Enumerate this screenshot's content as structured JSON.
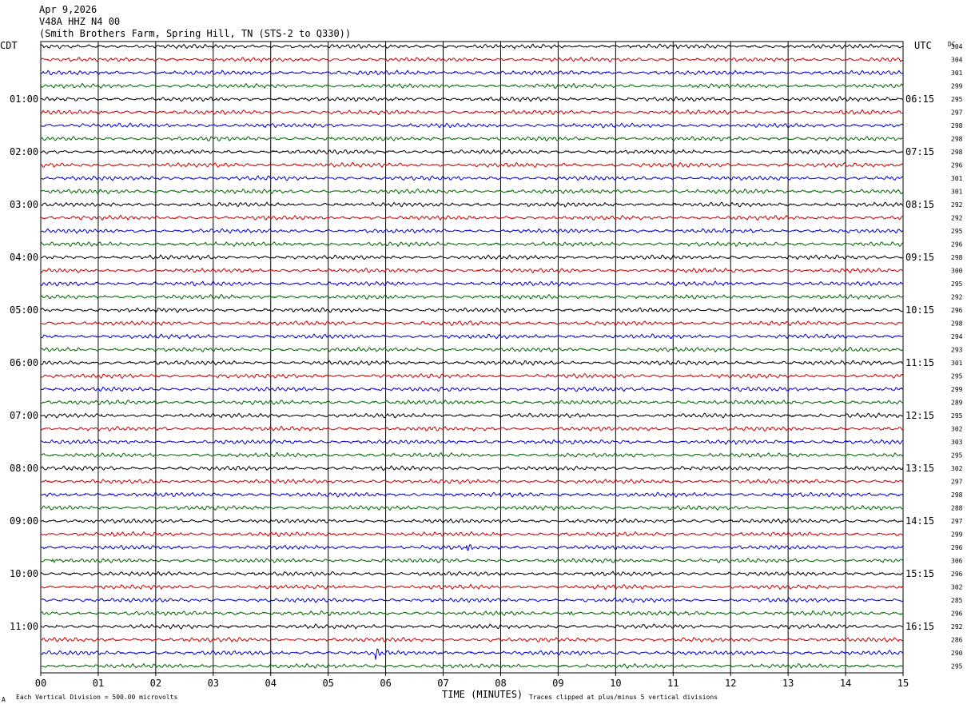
{
  "header": {
    "date": "Apr 9,2026",
    "station": "V48A HHZ N4 00",
    "location": "(Smith Brothers Farm, Spring Hill, TN (STS-2 to Q330))"
  },
  "left_zone_label": "CDT",
  "right_zone_label": "UTC",
  "dc_header": "DC",
  "footer": {
    "scale_note": "Each Vertical Division =  500.00 microvolts",
    "xlabel": "TIME (MINUTES)",
    "clip_note": "Traces clipped at plus/minus 5 vertical divisions",
    "corner_mark": "A"
  },
  "colors": {
    "trace_cycle": [
      "#000000",
      "#cc0000",
      "#0000cc",
      "#006600"
    ],
    "grid": "#000000"
  },
  "chart_data": {
    "type": "line",
    "description_kind": "helicorder",
    "x_ticks": [
      "00",
      "01",
      "02",
      "03",
      "04",
      "05",
      "06",
      "07",
      "08",
      "09",
      "10",
      "11",
      "12",
      "13",
      "14",
      "15"
    ],
    "xlim": [
      0,
      15
    ],
    "minutes_per_line": 15,
    "left_time_labels": [
      "01:00",
      "02:00",
      "03:00",
      "04:00",
      "05:00",
      "06:00",
      "07:00",
      "08:00",
      "09:00",
      "10:00",
      "11:00"
    ],
    "right_time_labels": [
      "06:15",
      "07:15",
      "08:15",
      "09:15",
      "10:15",
      "11:15",
      "12:15",
      "13:15",
      "14:15",
      "15:15",
      "16:15"
    ],
    "dc_offsets": [
      304,
      304,
      301,
      299,
      295,
      297,
      298,
      298,
      298,
      296,
      301,
      301,
      292,
      292,
      295,
      296,
      298,
      300,
      295,
      292,
      296,
      298,
      294,
      293,
      301,
      295,
      299,
      289,
      295,
      302,
      303,
      295,
      302,
      297,
      298,
      288,
      297,
      299,
      296,
      306,
      296,
      302,
      285,
      296,
      292,
      286,
      290,
      295
    ],
    "events": [
      {
        "trace": 38,
        "minute": 7.4,
        "amplitude_div": 1.5
      },
      {
        "trace": 39,
        "minute": 0.2,
        "amplitude_div": 0.6
      },
      {
        "trace": 43,
        "minute": 9.2,
        "amplitude_div": 0.6
      },
      {
        "trace": 46,
        "minute": 5.8,
        "amplitude_div": 3.0
      }
    ]
  }
}
